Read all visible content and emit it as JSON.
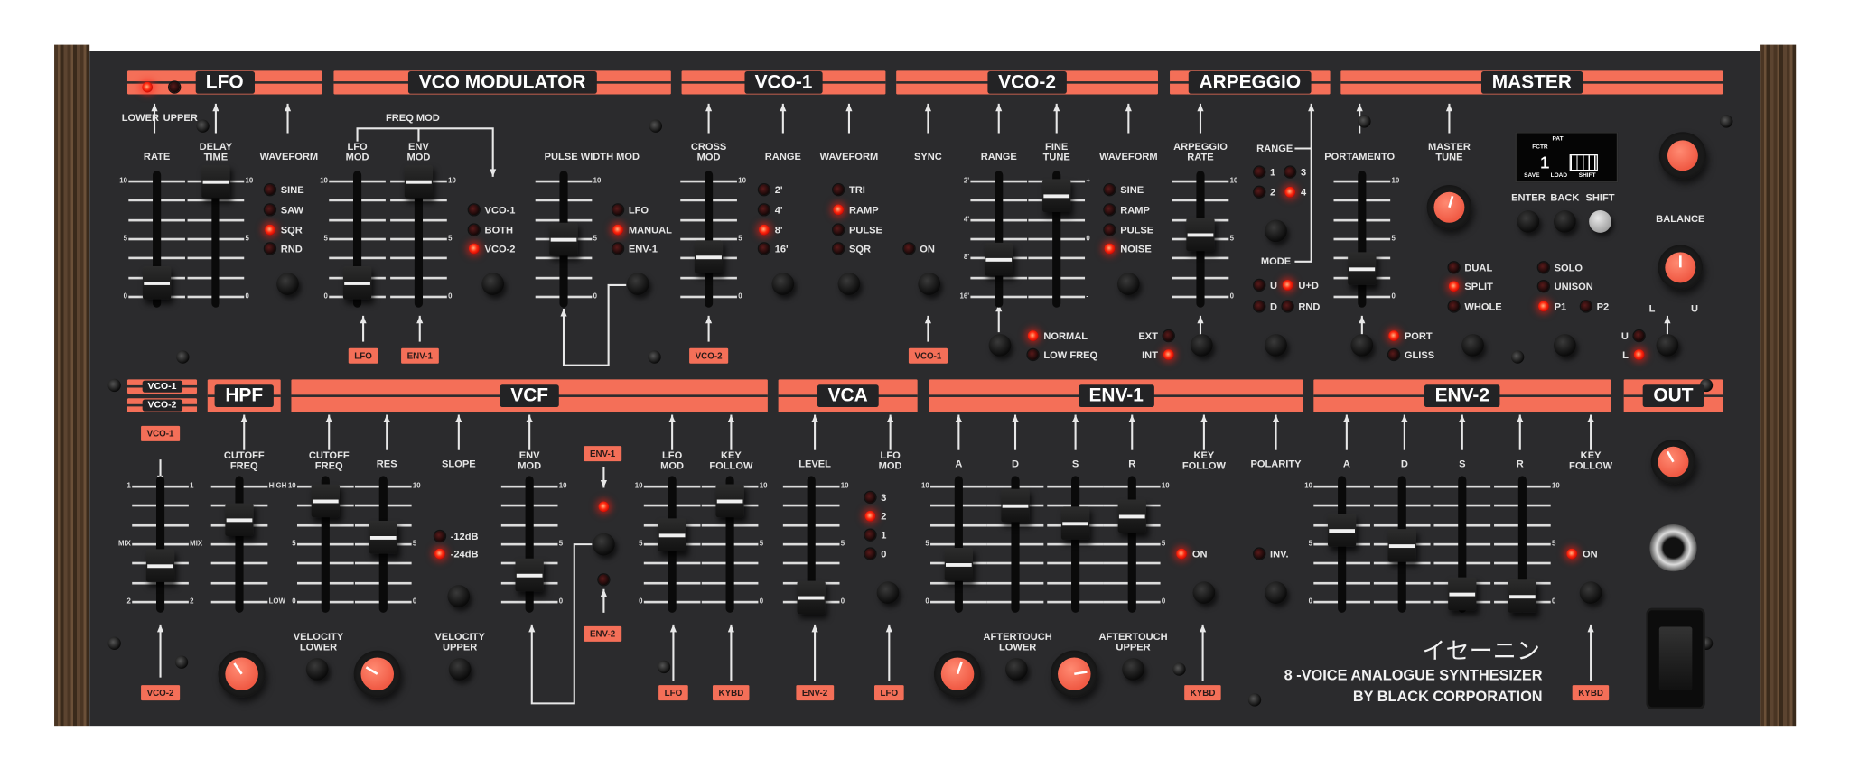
{
  "colors": {
    "panel": "#2b2b2d",
    "accent": "#f46f58",
    "led_on": "#ff2a10"
  },
  "headers": {
    "lfo": "LFO",
    "vco_modulator": "VCO MODULATOR",
    "vco1": "VCO-1",
    "vco2": "VCO-2",
    "arpeggio": "ARPEGGIO",
    "master": "MASTER",
    "mix_vco1": "VCO-1",
    "mix_vco2": "VCO-2",
    "hpf": "HPF",
    "vcf": "VCF",
    "vca": "VCA",
    "env1": "ENV-1",
    "env2": "ENV-2",
    "out": "OUT"
  },
  "labels": {
    "lower": "LOWER",
    "upper": "UPPER",
    "lfo_rate": "RATE",
    "lfo_delay": "DELAY\nTIME",
    "lfo_waveform": "WAVEFORM",
    "freq_mod": "FREQ MOD",
    "lfo_mod": "LFO\nMOD",
    "env_mod": "ENV\nMOD",
    "pwm": "PULSE WIDTH MOD",
    "cross_mod": "CROSS\nMOD",
    "vco1_range": "RANGE",
    "vco1_waveform": "WAVEFORM",
    "sync": "SYNC",
    "vco2_range": "RANGE",
    "fine_tune": "FINE\nTUNE",
    "vco2_waveform": "WAVEFORM",
    "arp_rate": "ARPEGGIO\nRATE",
    "arp_range": "RANGE",
    "arp_mode": "MODE",
    "portamento": "PORTAMENTO",
    "master_tune": "MASTER\nTUNE",
    "enter": "ENTER",
    "back": "BACK",
    "shift": "SHIFT",
    "balance": "BALANCE",
    "bal_l": "L",
    "bal_u": "U",
    "hpf_cutoff": "CUTOFF\nFREQ",
    "vcf_cutoff": "CUTOFF\nFREQ",
    "res": "RES",
    "slope": "SLOPE",
    "vcf_env_mod": "ENV\nMOD",
    "vcf_lfo_mod": "LFO\nMOD",
    "vcf_key_follow": "KEY\nFOLLOW",
    "vel_lower": "VELOCITY\nLOWER",
    "vel_upper": "VELOCITY\nUPPER",
    "vca_level": "LEVEL",
    "vca_lfo_mod": "LFO\nMOD",
    "env1_a": "A",
    "env1_d": "D",
    "env1_s": "S",
    "env1_r": "R",
    "env1_key_follow": "KEY\nFOLLOW",
    "polarity": "POLARITY",
    "at_lower": "AFTERTOUCH\nLOWER",
    "at_upper": "AFTERTOUCH\nUPPER",
    "env2_a": "A",
    "env2_d": "D",
    "env2_s": "S",
    "env2_r": "R",
    "env2_key_follow": "KEY\nFOLLOW"
  },
  "leds": [
    {
      "id": "lfo_lower",
      "label": "",
      "on": true
    },
    {
      "id": "lfo_upper",
      "label": "",
      "on": false
    },
    {
      "id": "lfo_sine",
      "label": "SINE",
      "on": false
    },
    {
      "id": "lfo_saw",
      "label": "SAW",
      "on": false
    },
    {
      "id": "lfo_sqr",
      "label": "SQR",
      "on": true
    },
    {
      "id": "lfo_rnd",
      "label": "RND",
      "on": false
    },
    {
      "id": "fm_vco1",
      "label": "VCO-1",
      "on": false
    },
    {
      "id": "fm_both",
      "label": "BOTH",
      "on": false
    },
    {
      "id": "fm_vco2",
      "label": "VCO-2",
      "on": true
    },
    {
      "id": "pwm_lfo",
      "label": "LFO",
      "on": false
    },
    {
      "id": "pwm_manual",
      "label": "MANUAL",
      "on": true
    },
    {
      "id": "pwm_env1",
      "label": "ENV-1",
      "on": false
    },
    {
      "id": "r1_2",
      "label": "2'",
      "on": false
    },
    {
      "id": "r1_4",
      "label": "4'",
      "on": false
    },
    {
      "id": "r1_8",
      "label": "8'",
      "on": true
    },
    {
      "id": "r1_16",
      "label": "16'",
      "on": false
    },
    {
      "id": "w1_tri",
      "label": "TRI",
      "on": false
    },
    {
      "id": "w1_ramp",
      "label": "RAMP",
      "on": true
    },
    {
      "id": "w1_pulse",
      "label": "PULSE",
      "on": false
    },
    {
      "id": "w1_sqr",
      "label": "SQR",
      "on": false
    },
    {
      "id": "sync_on",
      "label": "ON",
      "on": false
    },
    {
      "id": "w2_sine",
      "label": "SINE",
      "on": false
    },
    {
      "id": "w2_ramp",
      "label": "RAMP",
      "on": false
    },
    {
      "id": "w2_pulse",
      "label": "PULSE",
      "on": false
    },
    {
      "id": "w2_noise",
      "label": "NOISE",
      "on": true
    },
    {
      "id": "v2_normal",
      "label": "NORMAL",
      "on": true
    },
    {
      "id": "v2_lowfreq",
      "label": "LOW FREQ",
      "on": false
    },
    {
      "id": "ext",
      "label": "EXT",
      "on": false
    },
    {
      "id": "int",
      "label": "INT",
      "on": true
    },
    {
      "id": "ar_1",
      "label": "1",
      "on": false
    },
    {
      "id": "ar_3",
      "label": "3",
      "on": false
    },
    {
      "id": "ar_2",
      "label": "2",
      "on": false
    },
    {
      "id": "ar_4",
      "label": "4",
      "on": true
    },
    {
      "id": "am_u",
      "label": "U",
      "on": false
    },
    {
      "id": "am_ud",
      "label": "U+D",
      "on": true
    },
    {
      "id": "am_d",
      "label": "D",
      "on": false
    },
    {
      "id": "am_rnd",
      "label": "RND",
      "on": false
    },
    {
      "id": "km_dual",
      "label": "DUAL",
      "on": false
    },
    {
      "id": "km_split",
      "label": "SPLIT",
      "on": true
    },
    {
      "id": "km_whole",
      "label": "WHOLE",
      "on": false
    },
    {
      "id": "km_solo",
      "label": "SOLO",
      "on": false
    },
    {
      "id": "km_unison",
      "label": "UNISON",
      "on": false
    },
    {
      "id": "km_p1",
      "label": "P1",
      "on": true
    },
    {
      "id": "km_p2",
      "label": "P2",
      "on": false
    },
    {
      "id": "port",
      "label": "PORT",
      "on": true
    },
    {
      "id": "gliss",
      "label": "GLISS",
      "on": false
    },
    {
      "id": "out_u",
      "label": "U",
      "on": false
    },
    {
      "id": "out_l",
      "label": "L",
      "on": true
    },
    {
      "id": "slope_12",
      "label": "-12dB",
      "on": false
    },
    {
      "id": "slope_24",
      "label": "-24dB",
      "on": true
    },
    {
      "id": "vcf_env1",
      "label": "",
      "on": true
    },
    {
      "id": "vcf_env2",
      "label": "",
      "on": false
    },
    {
      "id": "vca_3",
      "label": "3",
      "on": false
    },
    {
      "id": "vca_2",
      "label": "2",
      "on": true
    },
    {
      "id": "vca_1",
      "label": "1",
      "on": false
    },
    {
      "id": "vca_0",
      "label": "0",
      "on": false
    },
    {
      "id": "env1_kf_on",
      "label": "ON",
      "on": true
    },
    {
      "id": "polarity_inv",
      "label": "INV.",
      "on": false
    },
    {
      "id": "env2_kf_on",
      "label": "ON",
      "on": true
    }
  ],
  "sliders": [
    {
      "id": "lfo_rate",
      "value": 1.2,
      "scale_left": [
        "10",
        "5",
        "0"
      ],
      "scale_right": []
    },
    {
      "id": "lfo_delay",
      "value": 10,
      "scale_left": [],
      "scale_right": [
        "10",
        "5",
        "0"
      ]
    },
    {
      "id": "lfo_mod",
      "value": 1.2,
      "scale_left": [
        "10",
        "5",
        "0"
      ],
      "scale_right": []
    },
    {
      "id": "env_mod",
      "value": 10,
      "scale_left": [],
      "scale_right": [
        "10",
        "5",
        "0"
      ]
    },
    {
      "id": "pwm",
      "value": 5,
      "scale_left": [],
      "scale_right": [
        "10",
        "5",
        "0"
      ]
    },
    {
      "id": "cross_mod",
      "value": 3.5,
      "scale_left": [],
      "scale_right": [
        "10",
        "5",
        "0"
      ]
    },
    {
      "id": "vco2_range",
      "value": 3.3,
      "scale_left": [
        "2'",
        "4'",
        "8'",
        "16'"
      ],
      "scale_right": []
    },
    {
      "id": "fine_tune",
      "value": 8.8,
      "scale_left": [],
      "scale_right": [
        "+",
        "0",
        "-"
      ]
    },
    {
      "id": "arp_rate",
      "value": 5.4,
      "scale_left": [],
      "scale_right": [
        "10",
        "5",
        "0"
      ]
    },
    {
      "id": "portamento",
      "value": 2.5,
      "scale_left": [],
      "scale_right": [
        "10",
        "5",
        "0"
      ]
    },
    {
      "id": "vco_mix",
      "value": 3.2,
      "scale_left": [
        "1",
        "MIX",
        "2"
      ],
      "scale_right": [
        "1",
        "MIX",
        "2"
      ]
    },
    {
      "id": "hpf_cutoff",
      "value": 7.1,
      "scale_left": [],
      "scale_right": [
        "HIGH",
        "LOW"
      ]
    },
    {
      "id": "vcf_cutoff",
      "value": 8.8,
      "scale_left": [
        "10",
        "5",
        "0"
      ],
      "scale_right": []
    },
    {
      "id": "res",
      "value": 5.6,
      "scale_left": [],
      "scale_right": [
        "10",
        "5",
        "0"
      ]
    },
    {
      "id": "vcf_env_mod",
      "value": 2.3,
      "scale_left": [],
      "scale_right": [
        "10",
        "5",
        "0"
      ]
    },
    {
      "id": "vcf_lfo_mod",
      "value": 5.8,
      "scale_left": [
        "10",
        "5",
        "0"
      ],
      "scale_right": []
    },
    {
      "id": "vcf_key_follow",
      "value": 8.8,
      "scale_left": [],
      "scale_right": [
        "10",
        "5",
        "0"
      ]
    },
    {
      "id": "vca_level",
      "value": 0.4,
      "scale_left": [],
      "scale_right": [
        "10",
        "5",
        "0"
      ]
    },
    {
      "id": "env1_a",
      "value": 3.3,
      "scale_left": [
        "10",
        "5",
        "0"
      ],
      "scale_right": []
    },
    {
      "id": "env1_d",
      "value": 8.4,
      "scale_left": [],
      "scale_right": []
    },
    {
      "id": "env1_s",
      "value": 6.8,
      "scale_left": [],
      "scale_right": []
    },
    {
      "id": "env1_r",
      "value": 7.4,
      "scale_left": [],
      "scale_right": [
        "10",
        "5",
        "0"
      ]
    },
    {
      "id": "env2_a",
      "value": 6.2,
      "scale_left": [
        "10",
        "5",
        "0"
      ],
      "scale_right": []
    },
    {
      "id": "env2_d",
      "value": 4.9,
      "scale_left": [],
      "scale_right": []
    },
    {
      "id": "env2_s",
      "value": 0.7,
      "scale_left": [],
      "scale_right": []
    },
    {
      "id": "env2_r",
      "value": 0.5,
      "scale_left": [],
      "scale_right": [
        "10",
        "5",
        "0"
      ]
    }
  ],
  "knobs": [
    {
      "id": "master_volume",
      "value": 0.5,
      "pointer": false
    },
    {
      "id": "master_tune",
      "value": 0.56,
      "pointer": true
    },
    {
      "id": "balance",
      "value": 0.5,
      "pointer": true
    },
    {
      "id": "out_level",
      "value": 0.39,
      "pointer": true
    },
    {
      "id": "hpf_velocity_lower",
      "value": 0.37,
      "pointer": true
    },
    {
      "id": "vcf_velocity_upper",
      "value": 0.28,
      "pointer": true
    },
    {
      "id": "env_aftertouch_lower",
      "value": 0.57,
      "pointer": true
    },
    {
      "id": "env_aftertouch_upper",
      "value": 0.8,
      "pointer": true
    }
  ],
  "tags": {
    "lfo_fm": "LFO",
    "env1_fm": "ENV-1",
    "vco2_xmod": "VCO-2",
    "vco1_sync": "VCO-1",
    "mix_vco1": "VCO-1",
    "mix_vco2": "VCO-2",
    "vcf_env1": "ENV-1",
    "vcf_env2": "ENV-2",
    "vcf_lfo": "LFO",
    "vcf_kybd": "KYBD",
    "vca_env2": "ENV-2",
    "vca_lfo": "LFO",
    "env1_kybd": "KYBD",
    "env2_kybd": "KYBD"
  },
  "display": {
    "line1": "PAT",
    "line2": "FCTR",
    "number": "1",
    "soft1": "SAVE",
    "soft2": "LOAD",
    "soft3": "SHIFT"
  },
  "branding": {
    "japanese": "イセーニン",
    "line1": "8 -VOICE ANALOGUE SYNTHESIZER",
    "line2": "BY BLACK CORPORATION"
  }
}
